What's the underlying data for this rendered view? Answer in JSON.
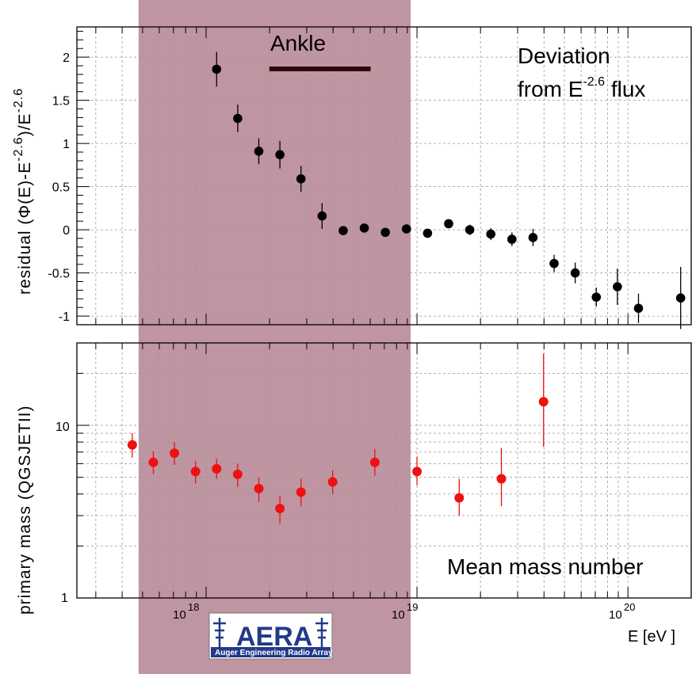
{
  "chart_data": [
    {
      "type": "scatter",
      "panel": "top",
      "ylabel": "residual (Φ(E)-E^-2.6)/E^-2.6",
      "ylabel_parts": {
        "a": "residual (Φ(E)-E",
        "b": "-2.6",
        "c": ")/E",
        "d": "-2.6"
      },
      "ylim": [
        -1.1,
        2.35
      ],
      "yticks": [
        -1,
        -0.5,
        0,
        0.5,
        1,
        1.5,
        2
      ],
      "ytick_labels": [
        "-1",
        "-0.5",
        "0",
        "0.5",
        "1",
        "1.5",
        "2"
      ],
      "xscale": "log",
      "xlim_log10": [
        17.3875,
        20.3
      ],
      "series_color": "#000000",
      "annotation_title": [
        "Deviation",
        "from E",
        "-2.6",
        " flux"
      ],
      "ankle_label": "Ankle",
      "ankle_range_log10": [
        18.3,
        18.78
      ],
      "x_log10": [
        18.05,
        18.15,
        18.25,
        18.35,
        18.45,
        18.55,
        18.65,
        18.75,
        18.85,
        18.95,
        19.05,
        19.15,
        19.25,
        19.35,
        19.45,
        19.55,
        19.65,
        19.75,
        19.85,
        19.95,
        20.05,
        20.25
      ],
      "y": [
        1.86,
        1.29,
        0.91,
        0.87,
        0.59,
        0.16,
        -0.01,
        0.02,
        -0.03,
        0.01,
        -0.04,
        0.07,
        0.0,
        -0.05,
        -0.11,
        -0.09,
        -0.39,
        -0.5,
        -0.78,
        -0.66,
        -0.91,
        -0.79
      ],
      "yerr": [
        0.2,
        0.16,
        0.15,
        0.16,
        0.15,
        0.15,
        0.02,
        0.02,
        0.02,
        0.02,
        0.03,
        0.05,
        0.06,
        0.07,
        0.08,
        0.1,
        0.1,
        0.12,
        0.11,
        0.21,
        0.17,
        0.36
      ]
    },
    {
      "type": "scatter",
      "panel": "bottom",
      "ylabel": "primary mass (QGSJETII)",
      "yscale": "log",
      "ylim": [
        1,
        30
      ],
      "yticks": [
        1,
        10
      ],
      "ytick_labels": [
        "1",
        "10"
      ],
      "xscale": "log",
      "xlim_log10": [
        17.3875,
        20.3
      ],
      "series_color": "#ee1111",
      "annotation_title": "Mean mass number",
      "xlabel": "E [eV  ]",
      "xtick_labels": [
        "10",
        "18",
        "10",
        "19",
        "10",
        "20"
      ],
      "x_log10": [
        17.65,
        17.75,
        17.85,
        17.95,
        18.05,
        18.15,
        18.25,
        18.35,
        18.45,
        18.6,
        18.8,
        19.0,
        19.2,
        19.4,
        19.6
      ],
      "y": [
        7.7,
        6.1,
        6.9,
        5.4,
        5.6,
        5.2,
        4.3,
        3.3,
        4.1,
        4.7,
        6.1,
        5.4,
        3.8,
        4.9,
        13.7
      ],
      "yerr_low": [
        1.2,
        0.9,
        1.0,
        0.8,
        0.7,
        0.8,
        0.7,
        0.6,
        0.7,
        0.7,
        1.0,
        0.9,
        0.8,
        1.5,
        6.2
      ],
      "yerr_high": [
        1.3,
        1.0,
        1.1,
        0.8,
        0.8,
        0.8,
        0.7,
        0.6,
        0.8,
        0.8,
        1.2,
        1.2,
        1.1,
        2.5,
        12.3
      ]
    }
  ],
  "shaded_band": {
    "x_log10": [
      17.68,
      18.97
    ],
    "color": "#bf95a1"
  },
  "logo": {
    "title": "AERA",
    "subtitle": "Auger Engineering Radio Array"
  }
}
